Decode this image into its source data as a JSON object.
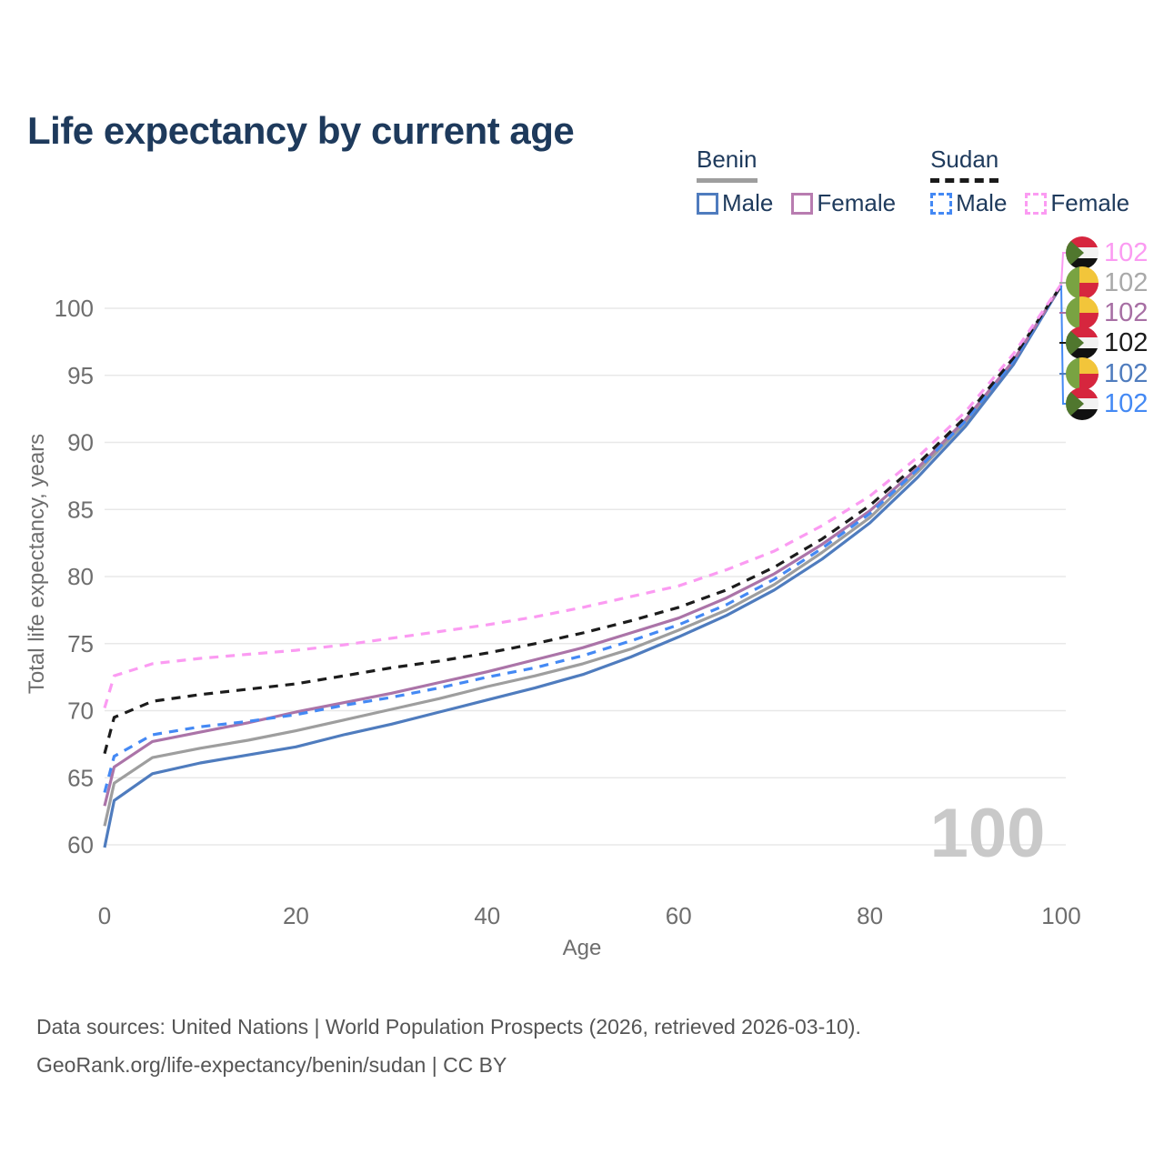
{
  "header": {
    "title": "Life expectancy by current age"
  },
  "legend": {
    "groups": [
      {
        "name": "Benin",
        "underline_style": "solid",
        "underline_color": "#9e9e9e",
        "items": [
          {
            "label": "Male",
            "color": "#4f7cbe",
            "dashed": false
          },
          {
            "label": "Female",
            "color": "#b87cb0",
            "dashed": false
          }
        ]
      },
      {
        "name": "Sudan",
        "underline_style": "dashed",
        "underline_color": "#1a1a1a",
        "items": [
          {
            "label": "Male",
            "color": "#4489f4",
            "dashed": true
          },
          {
            "label": "Female",
            "color": "#fb9bf2",
            "dashed": true
          }
        ]
      }
    ]
  },
  "chart_data": {
    "type": "line",
    "title": "Life expectancy by current age",
    "xlabel": "Age",
    "ylabel": "Total life expectancy, years",
    "xlim": [
      0,
      100
    ],
    "ylim": [
      58.5,
      103
    ],
    "xticks": [
      0,
      20,
      40,
      60,
      80,
      100
    ],
    "yticks": [
      60,
      65,
      70,
      75,
      80,
      85,
      90,
      95,
      100
    ],
    "grid": true,
    "legend_position": "top-right",
    "watermark": "100",
    "x": [
      0,
      1,
      5,
      10,
      15,
      20,
      25,
      30,
      35,
      40,
      45,
      50,
      55,
      60,
      65,
      70,
      75,
      80,
      85,
      90,
      95,
      100
    ],
    "series": [
      {
        "name": "Benin Both",
        "country": "Benin",
        "sex": "both",
        "color": "#9e9e9e",
        "dashed": false,
        "values": [
          61.4,
          64.6,
          66.5,
          67.2,
          67.8,
          68.5,
          69.3,
          70.1,
          70.9,
          71.8,
          72.6,
          73.5,
          74.6,
          76.0,
          77.5,
          79.4,
          81.8,
          84.4,
          87.8,
          91.5,
          96.0,
          101.7
        ],
        "end_label": "102"
      },
      {
        "name": "Benin Male",
        "country": "Benin",
        "sex": "male",
        "color": "#4f7cbe",
        "dashed": false,
        "values": [
          59.8,
          63.3,
          65.3,
          66.1,
          66.7,
          67.3,
          68.2,
          69.0,
          69.9,
          70.8,
          71.7,
          72.7,
          74.0,
          75.5,
          77.1,
          79.0,
          81.3,
          84.0,
          87.4,
          91.2,
          95.8,
          101.7
        ],
        "end_label": "102"
      },
      {
        "name": "Benin Female",
        "country": "Benin",
        "sex": "female",
        "color": "#ab74a8",
        "dashed": false,
        "values": [
          62.9,
          65.8,
          67.7,
          68.4,
          69.1,
          69.9,
          70.6,
          71.3,
          72.1,
          72.9,
          73.8,
          74.7,
          75.8,
          76.9,
          78.4,
          80.2,
          82.4,
          84.9,
          88.1,
          91.7,
          96.1,
          101.7
        ],
        "end_label": "102"
      },
      {
        "name": "Sudan Male",
        "country": "Sudan",
        "sex": "male",
        "color": "#4489f4",
        "dashed": true,
        "values": [
          63.9,
          66.6,
          68.2,
          68.8,
          69.2,
          69.7,
          70.4,
          71.0,
          71.7,
          72.5,
          73.2,
          74.1,
          75.2,
          76.4,
          77.9,
          79.8,
          82.1,
          84.7,
          88.0,
          91.6,
          96.1,
          101.7
        ],
        "end_label": "102"
      },
      {
        "name": "Sudan Both",
        "country": "Sudan",
        "sex": "both",
        "color": "#1c1c1c",
        "dashed": true,
        "values": [
          66.8,
          69.5,
          70.7,
          71.2,
          71.6,
          72.0,
          72.6,
          73.2,
          73.7,
          74.3,
          75.0,
          75.8,
          76.7,
          77.7,
          79.0,
          80.7,
          82.8,
          85.3,
          88.4,
          91.9,
          96.3,
          101.7
        ],
        "end_label": "102"
      },
      {
        "name": "Sudan Female",
        "country": "Sudan",
        "sex": "female",
        "color": "#fb9bf2",
        "dashed": true,
        "values": [
          70.2,
          72.6,
          73.5,
          73.9,
          74.2,
          74.5,
          74.9,
          75.4,
          75.9,
          76.4,
          77.0,
          77.7,
          78.5,
          79.3,
          80.5,
          81.9,
          83.8,
          86.0,
          88.9,
          92.3,
          96.6,
          101.8
        ],
        "end_label": "102"
      }
    ]
  },
  "end_labels": [
    {
      "country": "sudan",
      "value": "102",
      "color": "#fb9bf2"
    },
    {
      "country": "benin",
      "value": "102",
      "color": "#a9a9a9"
    },
    {
      "country": "benin",
      "value": "102",
      "color": "#a76fa4"
    },
    {
      "country": "sudan",
      "value": "102",
      "color": "#1c1c1c"
    },
    {
      "country": "benin",
      "value": "102",
      "color": "#4f7cbe"
    },
    {
      "country": "sudan",
      "value": "102",
      "color": "#4489f4"
    }
  ],
  "watermark": "100",
  "footer": {
    "line1": "Data sources: United Nations | World Population Prospects (2026, retrieved 2026-03-10).",
    "line2": "GeoRank.org/life-expectancy/benin/sudan | CC BY"
  },
  "colors": {
    "title": "#1e3a5c",
    "axis_text": "#6e6e6e",
    "grid": "#e8e8e8",
    "watermark": "#c9c9c9",
    "footer_text": "#555555"
  }
}
